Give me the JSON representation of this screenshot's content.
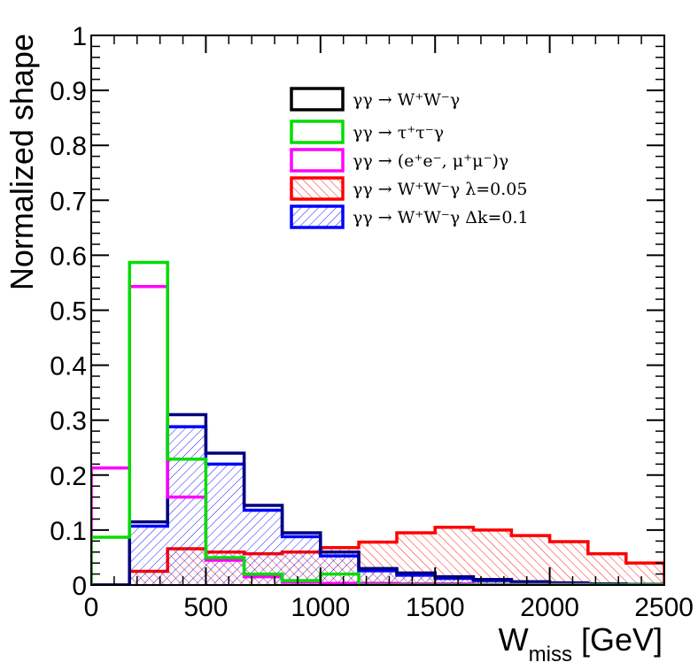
{
  "chart_data": {
    "type": "histogram",
    "title": "",
    "xlabel": "W",
    "xlabel_sub": "miss",
    "xlabel_unit": " [GeV]",
    "ylabel": "Normalized shape",
    "xlim": [
      0,
      2500
    ],
    "ylim": [
      0,
      1
    ],
    "x_ticks": [
      0,
      500,
      1000,
      1500,
      2000,
      2500
    ],
    "x_tick_labels": [
      "0",
      "500",
      "1000",
      "1500",
      "2000",
      "2500"
    ],
    "y_ticks": [
      0,
      0.1,
      0.2,
      0.3,
      0.4,
      0.5,
      0.6,
      0.7,
      0.8,
      0.9,
      1
    ],
    "y_tick_labels": [
      "0",
      "0.1",
      "0.2",
      "0.3",
      "0.4",
      "0.5",
      "0.6",
      "0.7",
      "0.8",
      "0.9",
      "1"
    ],
    "bin_edges": [
      0,
      167,
      333,
      500,
      667,
      833,
      1000,
      1167,
      1333,
      1500,
      1667,
      1833,
      2000,
      2167,
      2333,
      2500
    ],
    "legend_position": "top-right",
    "series": [
      {
        "name": "γγ → W⁺W⁻γ",
        "color": "#000080",
        "fill": "none",
        "values": [
          0.0,
          0.115,
          0.31,
          0.24,
          0.145,
          0.095,
          0.06,
          0.03,
          0.022,
          0.015,
          0.01,
          0.006,
          0.004,
          0.002,
          0.001
        ]
      },
      {
        "name": "γγ → τ⁺τ⁻γ",
        "color": "#00dd00",
        "fill": "none",
        "values": [
          0.087,
          0.587,
          0.229,
          0.05,
          0.02,
          0.008,
          0.02,
          0.0,
          0.0,
          0.0,
          0.0,
          0.0,
          0.0,
          0.0,
          0.0
        ]
      },
      {
        "name": "γγ → (e⁺e⁻, μ⁺μ⁻)γ",
        "color": "#ff00ff",
        "fill": "none",
        "values": [
          0.213,
          0.543,
          0.16,
          0.045,
          0.015,
          0.005,
          0.003,
          0.003,
          0.002,
          0.002,
          0.001,
          0.001,
          0.001,
          0.0,
          0.0
        ]
      },
      {
        "name": "γγ → W⁺W⁻γ  λ=0.05",
        "color": "#ff0000",
        "fill": "hatch-red",
        "values": [
          0.0,
          0.025,
          0.066,
          0.06,
          0.057,
          0.06,
          0.068,
          0.078,
          0.095,
          0.105,
          0.1,
          0.09,
          0.079,
          0.057,
          0.04
        ]
      },
      {
        "name": "γγ → W⁺W⁻γ  Δk=0.1",
        "color": "#0000ff",
        "fill": "hatch-blue",
        "values": [
          0.0,
          0.107,
          0.288,
          0.22,
          0.136,
          0.088,
          0.053,
          0.026,
          0.018,
          0.012,
          0.008,
          0.005,
          0.003,
          0.001,
          0.001
        ]
      }
    ]
  }
}
